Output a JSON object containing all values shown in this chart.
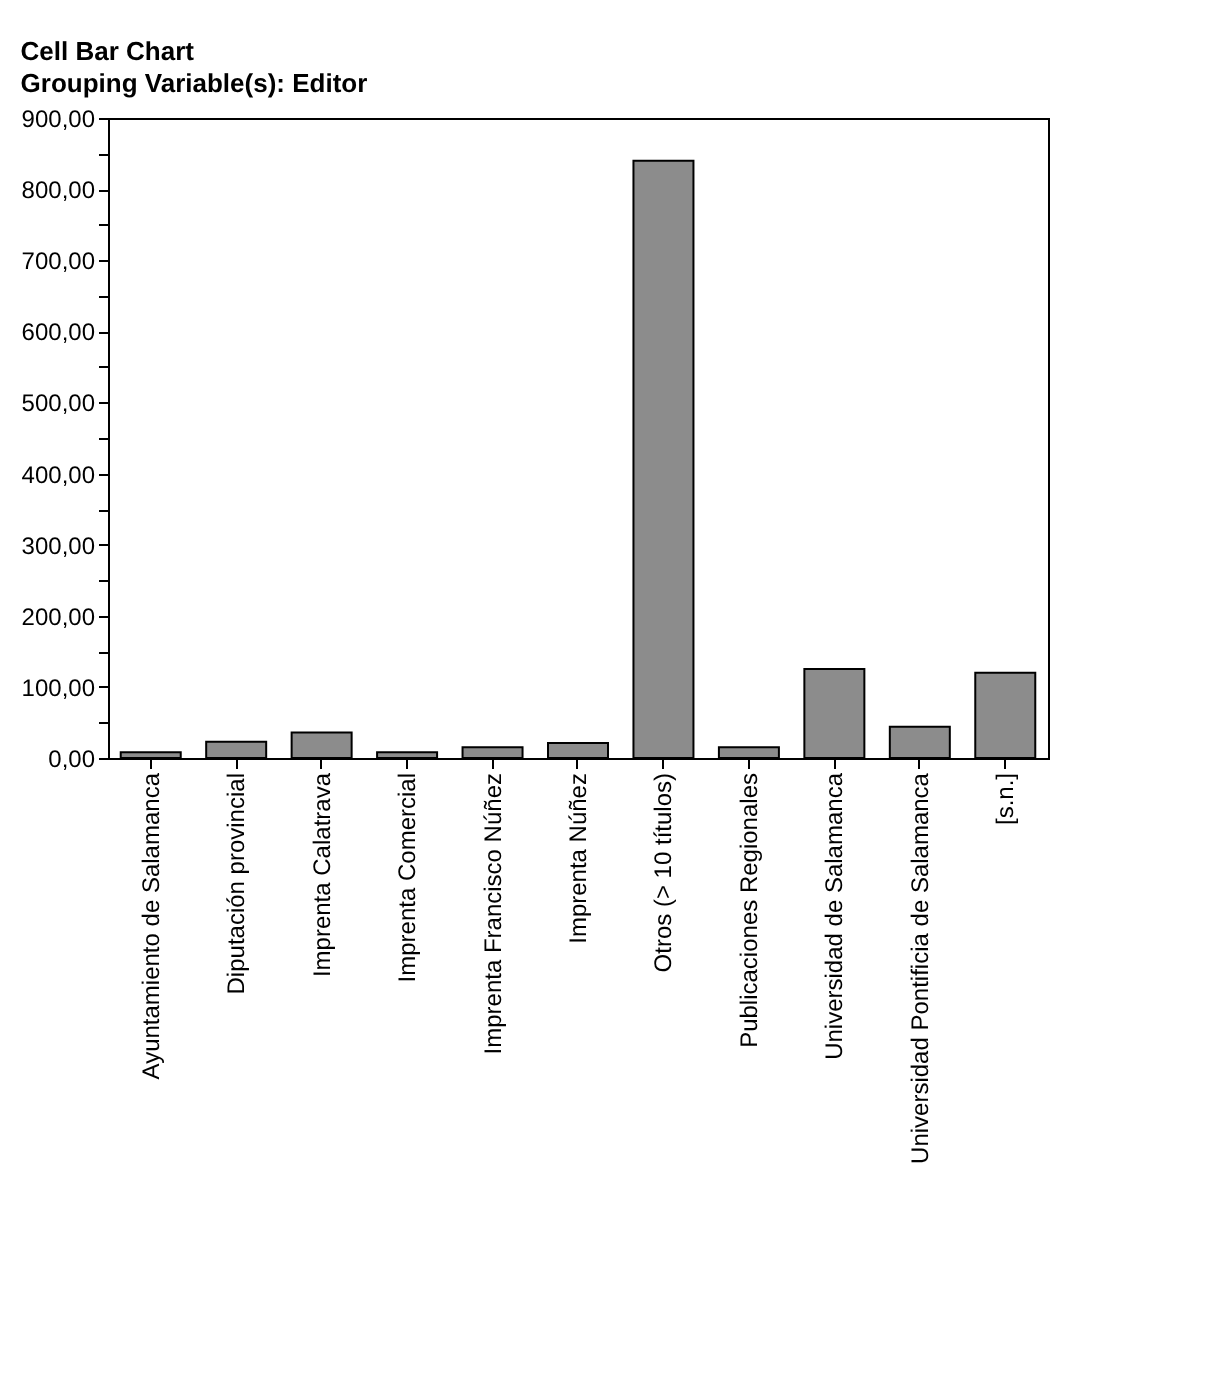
{
  "chart_data": {
    "type": "bar",
    "title": "Cell Bar Chart",
    "subtitle": "Grouping Variable(s): Editor",
    "categories": [
      "Ayuntamiento de Salamanca",
      "Diputación provincial",
      "Imprenta Calatrava",
      "Imprenta Comercial",
      "Imprenta Francisco Núñez",
      "Imprenta Núñez",
      "Otros (> 10 títulos)",
      "Publicaciones Regionales",
      "Universidad de Salamanca",
      "Universidad Pontificia de Salamanca",
      "[s.n.]"
    ],
    "values": [
      8,
      23,
      36,
      8,
      15,
      21,
      840,
      15,
      125,
      44,
      120
    ],
    "color": "#8c8c8c",
    "ylim": [
      0,
      900
    ],
    "yticks": [
      {
        "value": 0,
        "label": "0,00"
      },
      {
        "value": 50,
        "label": null
      },
      {
        "value": 100,
        "label": "100,00"
      },
      {
        "value": 150,
        "label": null
      },
      {
        "value": 200,
        "label": "200,00"
      },
      {
        "value": 250,
        "label": null
      },
      {
        "value": 300,
        "label": "300,00"
      },
      {
        "value": 350,
        "label": null
      },
      {
        "value": 400,
        "label": "400,00"
      },
      {
        "value": 450,
        "label": null
      },
      {
        "value": 500,
        "label": "500,00"
      },
      {
        "value": 550,
        "label": null
      },
      {
        "value": 600,
        "label": "600,00"
      },
      {
        "value": 650,
        "label": null
      },
      {
        "value": 700,
        "label": "700,00"
      },
      {
        "value": 750,
        "label": null
      },
      {
        "value": 800,
        "label": "800,00"
      },
      {
        "value": 850,
        "label": null
      },
      {
        "value": 900,
        "label": "900,00"
      }
    ],
    "grid": false
  }
}
